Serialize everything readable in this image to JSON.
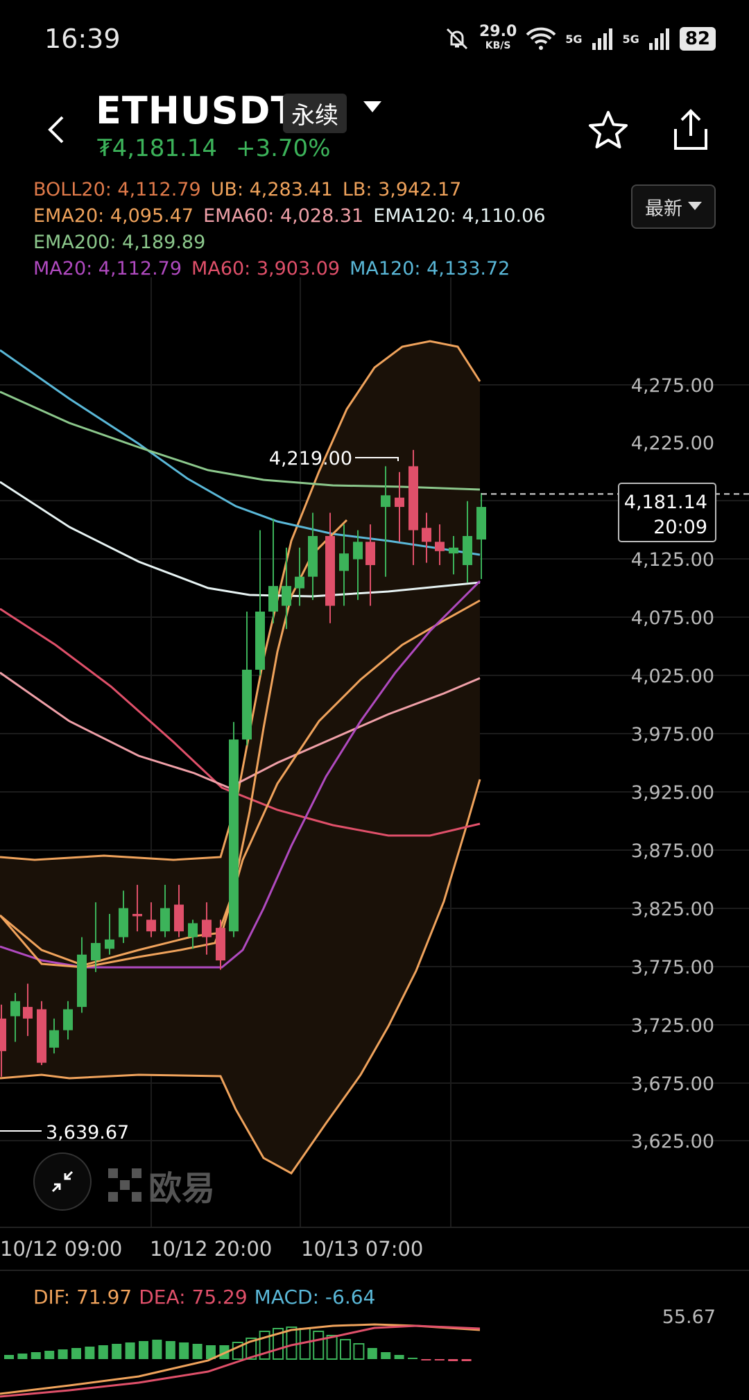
{
  "status": {
    "time": "16:39",
    "net_value": "29.0",
    "net_unit": "KB/S",
    "sig1": "5G",
    "sig2": "5G",
    "battery": "82"
  },
  "header": {
    "pair": "ETHUSDT",
    "contract_type": "永续",
    "price": "₮4,181.14",
    "change": "+3.70%"
  },
  "legend": {
    "boll": "BOLL20: 4,112.79",
    "ub": "UB: 4,283.41",
    "lb": "LB: 3,942.17",
    "ema20": "EMA20: 4,095.47",
    "ema60": "EMA60: 4,028.31",
    "ema120": "EMA120: 4,110.06",
    "ema200": "EMA200: 4,189.89",
    "ma20": "MA20: 4,112.79",
    "ma60": "MA60: 3,903.09",
    "ma120": "MA120: 4,133.72"
  },
  "dropdown": {
    "label": "最新"
  },
  "price_axis": [
    "4,275.00",
    "4,225.00",
    "4,125.00",
    "4,075.00",
    "4,025.00",
    "3,975.00",
    "3,925.00",
    "3,875.00",
    "3,825.00",
    "3,775.00",
    "3,725.00",
    "3,675.00",
    "3,625.00"
  ],
  "current_tag": {
    "price": "4,181.14",
    "countdown": "20:09"
  },
  "high_label": "4,219.00",
  "low_label": "3,639.67",
  "watermark": "欧易",
  "time_axis": [
    "10/12 09:00",
    "10/12 20:00",
    "10/13 07:00"
  ],
  "macd": {
    "dif": "DIF: 71.97",
    "dea": "DEA: 75.29",
    "macd": "MACD: -6.64",
    "axis_value": "55.67"
  },
  "colors": {
    "up": "#3cb35a",
    "down": "#e0506a",
    "boll": "#f0a35c",
    "ema20": "#f0a35c",
    "ema60": "#f0a0a8",
    "ema120": "#e8f4f4",
    "ema200": "#8cc88c",
    "ma20": "#b04ac0",
    "ma60": "#e0506a",
    "ma120": "#5ab8d8"
  }
}
